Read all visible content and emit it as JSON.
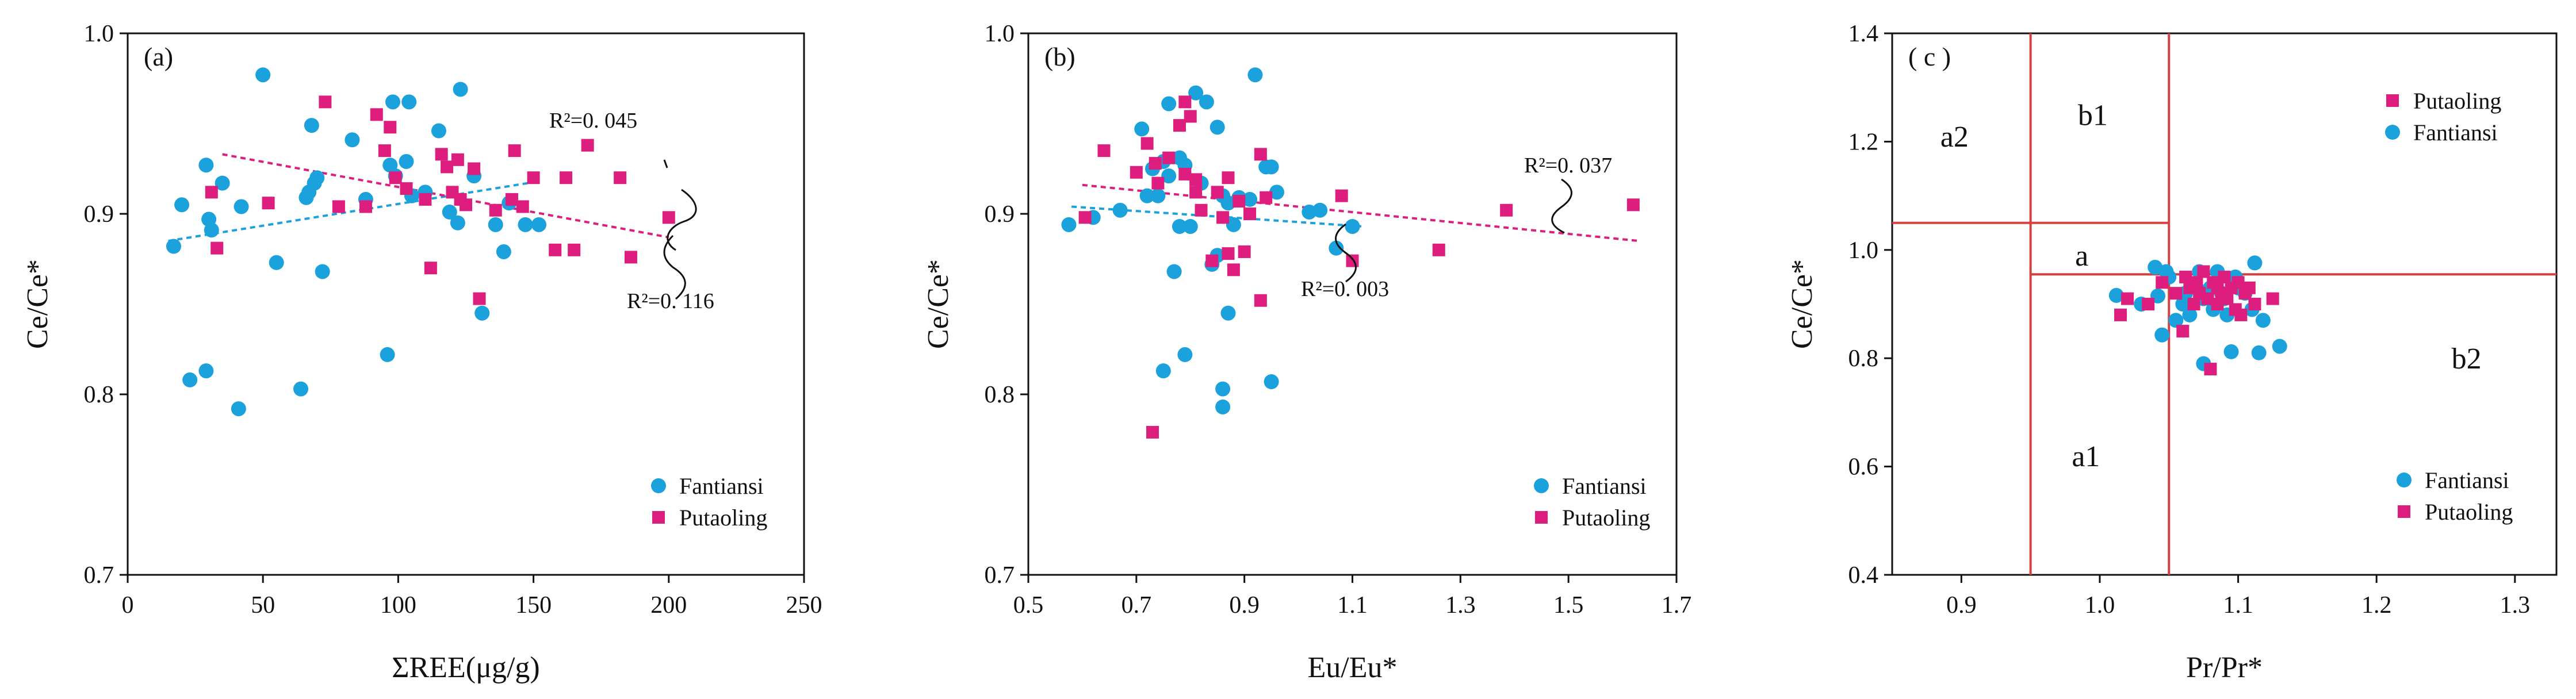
{
  "colors": {
    "fantiansi": "#1ba1dc",
    "putaoling": "#dd1e7e",
    "region_lines": "#d84040",
    "axis": "#111111"
  },
  "chart_data": [
    {
      "type": "scatter",
      "panel_label": "(a)",
      "xlabel": "ΣREE(μg/g)",
      "ylabel": "Ce/Ce*",
      "xlim": [
        0,
        250
      ],
      "ylim": [
        0.7,
        1.0
      ],
      "x_ticks": [
        "0",
        "50",
        "100",
        "150",
        "200",
        "250"
      ],
      "y_ticks": [
        "0.7",
        "0.8",
        "0.9",
        "1.0"
      ],
      "legend": [
        "Fantiansi",
        "Putaoling"
      ],
      "legend_position": "bottom-right",
      "series": [
        {
          "name": "Fantiansi",
          "x": [
            17,
            20,
            23,
            29,
            29,
            30,
            31,
            35,
            41,
            42,
            50,
            55,
            64,
            66,
            67,
            68,
            69,
            70,
            72,
            83,
            88,
            96,
            97,
            98,
            99,
            103,
            104,
            105,
            110,
            115,
            119,
            122,
            123,
            128,
            131,
            136,
            139,
            141,
            147,
            152
          ],
          "y": [
            0.882,
            0.905,
            0.808,
            0.813,
            0.927,
            0.897,
            0.891,
            0.917,
            0.792,
            0.904,
            0.977,
            0.873,
            0.803,
            0.909,
            0.912,
            0.949,
            0.917,
            0.92,
            0.868,
            0.941,
            0.908,
            0.822,
            0.927,
            0.962,
            0.921,
            0.929,
            0.962,
            0.91,
            0.912,
            0.946,
            0.901,
            0.895,
            0.969,
            0.921,
            0.845,
            0.894,
            0.879,
            0.906,
            0.894,
            0.894
          ]
        },
        {
          "name": "Putaoling",
          "x": [
            31,
            33,
            52,
            73,
            78,
            88,
            92,
            95,
            97,
            99,
            103,
            110,
            112,
            116,
            118,
            120,
            122,
            123,
            125,
            128,
            130,
            136,
            142,
            143,
            146,
            150,
            158,
            162,
            165,
            170,
            182,
            186,
            200
          ],
          "y": [
            0.912,
            0.881,
            0.906,
            0.962,
            0.904,
            0.904,
            0.955,
            0.935,
            0.948,
            0.92,
            0.914,
            0.908,
            0.87,
            0.933,
            0.926,
            0.912,
            0.93,
            0.908,
            0.905,
            0.925,
            0.853,
            0.902,
            0.908,
            0.935,
            0.904,
            0.92,
            0.88,
            0.92,
            0.88,
            0.938,
            0.92,
            0.876,
            0.898
          ]
        }
      ],
      "trendlines": [
        {
          "series": "Fantiansi",
          "x": [
            15,
            152
          ],
          "y": [
            0.885,
            0.918
          ],
          "r2_label": "R²=0. 045"
        },
        {
          "series": "Putaoling",
          "x": [
            35,
            200
          ],
          "y": [
            0.933,
            0.887
          ],
          "r2_label": "R²=0. 116"
        }
      ]
    },
    {
      "type": "scatter",
      "panel_label": "(b)",
      "xlabel": "Eu/Eu*",
      "ylabel": "Ce/Ce*",
      "xlim": [
        0.5,
        1.7
      ],
      "ylim": [
        0.7,
        1.0
      ],
      "x_ticks": [
        "0.5",
        "0.7",
        "0.9",
        "1.1",
        "1.3",
        "1.5",
        "1.7"
      ],
      "y_ticks": [
        "0.7",
        "0.8",
        "0.9",
        "1.0"
      ],
      "legend": [
        "Fantiansi",
        "Putaoling"
      ],
      "legend_position": "bottom-right",
      "series": [
        {
          "name": "Fantiansi",
          "x": [
            0.575,
            0.62,
            0.67,
            0.71,
            0.72,
            0.73,
            0.74,
            0.75,
            0.75,
            0.76,
            0.76,
            0.77,
            0.78,
            0.78,
            0.79,
            0.79,
            0.8,
            0.81,
            0.82,
            0.83,
            0.84,
            0.85,
            0.85,
            0.86,
            0.86,
            0.86,
            0.87,
            0.87,
            0.88,
            0.89,
            0.91,
            0.92,
            0.94,
            0.95,
            0.95,
            0.96,
            1.02,
            1.04,
            1.07,
            1.1
          ],
          "y": [
            0.894,
            0.898,
            0.902,
            0.947,
            0.91,
            0.925,
            0.91,
            0.813,
            0.929,
            0.961,
            0.921,
            0.868,
            0.893,
            0.931,
            0.927,
            0.822,
            0.893,
            0.967,
            0.917,
            0.962,
            0.872,
            0.877,
            0.948,
            0.803,
            0.793,
            0.91,
            0.845,
            0.906,
            0.894,
            0.909,
            0.908,
            0.977,
            0.926,
            0.926,
            0.807,
            0.912,
            0.901,
            0.902,
            0.881,
            0.893
          ]
        },
        {
          "name": "Putaoling",
          "x": [
            0.605,
            0.64,
            0.7,
            0.72,
            0.73,
            0.735,
            0.74,
            0.76,
            0.78,
            0.79,
            0.79,
            0.8,
            0.81,
            0.81,
            0.82,
            0.84,
            0.85,
            0.86,
            0.87,
            0.87,
            0.88,
            0.89,
            0.9,
            0.91,
            0.93,
            0.93,
            0.94,
            1.08,
            1.1,
            1.26,
            1.385,
            1.62
          ],
          "y": [
            0.898,
            0.935,
            0.923,
            0.939,
            0.779,
            0.928,
            0.917,
            0.931,
            0.949,
            0.922,
            0.962,
            0.954,
            0.919,
            0.912,
            0.902,
            0.874,
            0.912,
            0.898,
            0.878,
            0.92,
            0.869,
            0.907,
            0.879,
            0.9,
            0.852,
            0.933,
            0.909,
            0.91,
            0.874,
            0.88,
            0.902,
            0.905
          ]
        }
      ],
      "trendlines": [
        {
          "series": "Fantiansi",
          "x": [
            0.58,
            1.12
          ],
          "y": [
            0.904,
            0.893
          ],
          "r2_label": "R²=0. 003"
        },
        {
          "series": "Putaoling",
          "x": [
            0.6,
            1.63
          ],
          "y": [
            0.916,
            0.885
          ],
          "r2_label": "R²=0. 037"
        }
      ]
    },
    {
      "type": "scatter",
      "panel_label": "( c )",
      "xlabel": "Pr/Pr*",
      "ylabel": "Ce/Ce*",
      "xlim": [
        0.85,
        1.33
      ],
      "ylim": [
        0.4,
        1.4
      ],
      "x_ticks": [
        "0.9",
        "1.0",
        "1.1",
        "1.2",
        "1.3"
      ],
      "x_tick_values": [
        0.9,
        1.0,
        1.1,
        1.2,
        1.3
      ],
      "y_ticks": [
        "0.4",
        "0.6",
        "0.8",
        "1.0",
        "1.2",
        "1.4"
      ],
      "region_lines": [
        {
          "x": [
            0.95,
            0.95
          ],
          "y": [
            0.4,
            1.4
          ]
        },
        {
          "x": [
            1.05,
            1.05
          ],
          "y": [
            0.4,
            1.4
          ]
        },
        {
          "x": [
            0.85,
            1.05
          ],
          "y": [
            1.05,
            1.05
          ]
        },
        {
          "x": [
            0.95,
            1.33
          ],
          "y": [
            0.955,
            0.955
          ]
        }
      ],
      "regions": [
        {
          "label": "a2",
          "x": 0.895,
          "y": 1.21
        },
        {
          "label": "b1",
          "x": 0.995,
          "y": 1.25
        },
        {
          "label": "a",
          "x": 0.987,
          "y": 0.99
        },
        {
          "label": "b2",
          "x": 1.265,
          "y": 0.8
        },
        {
          "label": "a1",
          "x": 0.99,
          "y": 0.62
        }
      ],
      "legend": [
        "Putaoling",
        "Fantiansi",
        "Fantiansi",
        "Putaoling"
      ],
      "legend_position": "top-right and bottom-right",
      "series": [
        {
          "name": "Fantiansi",
          "x": [
            1.012,
            1.03,
            1.04,
            1.042,
            1.045,
            1.048,
            1.05,
            1.055,
            1.06,
            1.062,
            1.065,
            1.07,
            1.072,
            1.075,
            1.075,
            1.08,
            1.082,
            1.085,
            1.088,
            1.09,
            1.092,
            1.095,
            1.098,
            1.1,
            1.105,
            1.11,
            1.112,
            1.115,
            1.118,
            1.13
          ],
          "y": [
            0.916,
            0.9,
            0.968,
            0.915,
            0.843,
            0.96,
            0.95,
            0.87,
            0.9,
            0.92,
            0.88,
            0.93,
            0.96,
            0.79,
            0.91,
            0.93,
            0.89,
            0.96,
            0.92,
            0.91,
            0.88,
            0.812,
            0.95,
            0.93,
            0.92,
            0.89,
            0.976,
            0.81,
            0.87,
            0.822
          ]
        },
        {
          "name": "Putaoling",
          "x": [
            1.015,
            1.02,
            1.035,
            1.045,
            1.055,
            1.06,
            1.062,
            1.065,
            1.068,
            1.07,
            1.072,
            1.075,
            1.078,
            1.08,
            1.082,
            1.085,
            1.085,
            1.088,
            1.09,
            1.092,
            1.095,
            1.098,
            1.1,
            1.102,
            1.105,
            1.108,
            1.112,
            1.125
          ],
          "y": [
            0.88,
            0.91,
            0.9,
            0.94,
            0.92,
            0.85,
            0.95,
            0.93,
            0.9,
            0.94,
            0.92,
            0.96,
            0.91,
            0.78,
            0.94,
            0.93,
            0.9,
            0.92,
            0.95,
            0.91,
            0.93,
            0.89,
            0.94,
            0.88,
            0.92,
            0.93,
            0.9,
            0.91
          ]
        }
      ]
    }
  ]
}
